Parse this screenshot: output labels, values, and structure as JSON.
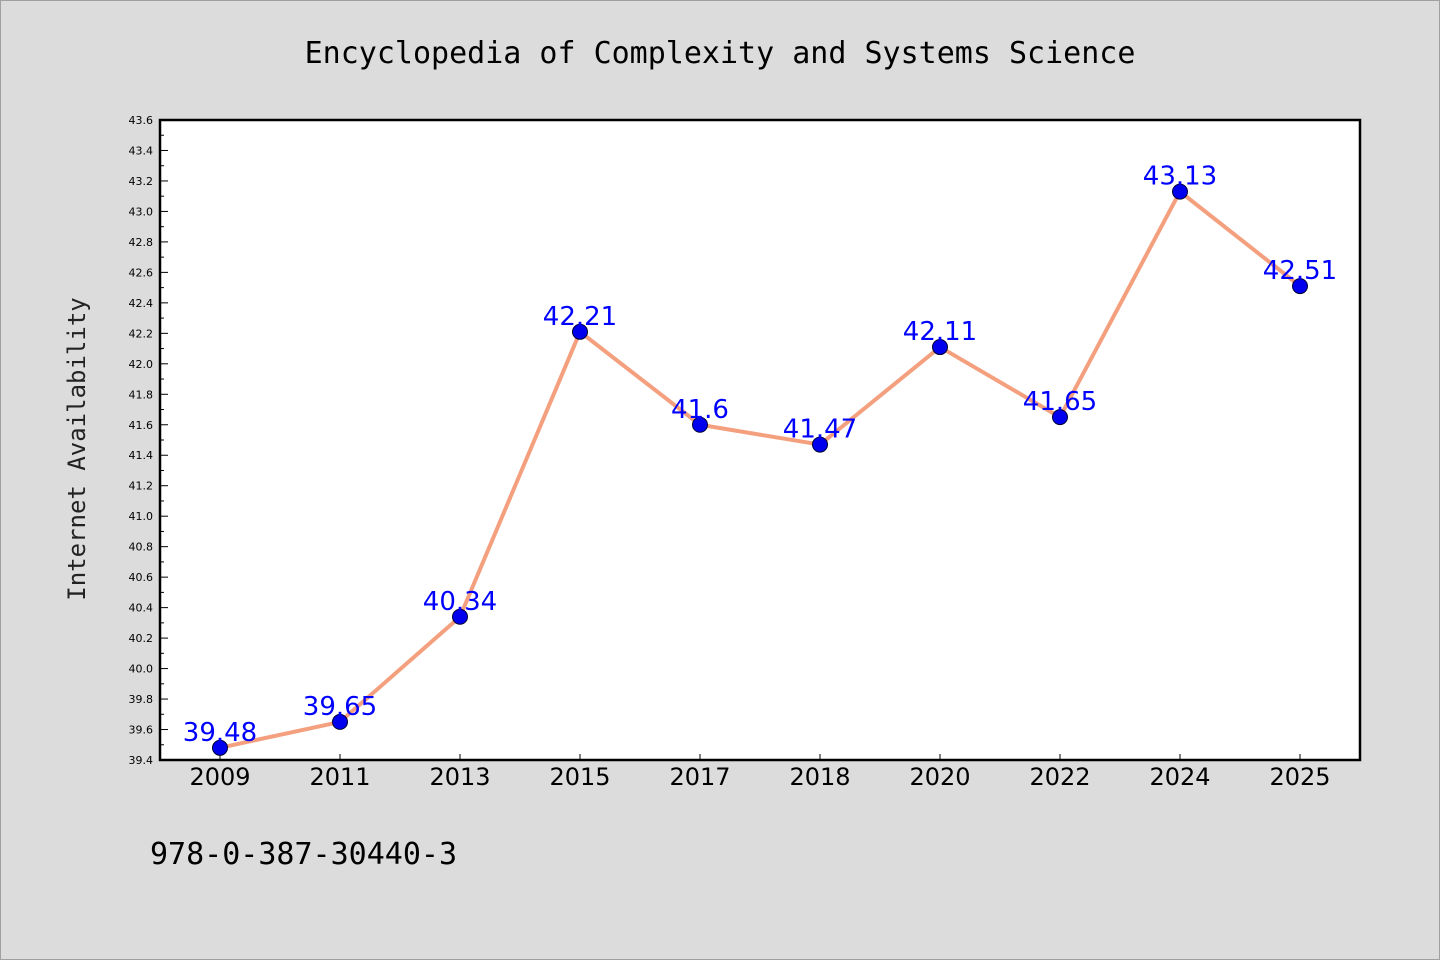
{
  "chart_data": {
    "type": "line",
    "title": "Encyclopedia of Complexity and Systems Science",
    "xlabel": "",
    "ylabel": "Internet Availability",
    "footer": "978-0-387-30440-3",
    "categories": [
      "2009",
      "2011",
      "2013",
      "2015",
      "2017",
      "2018",
      "2020",
      "2022",
      "2024",
      "2025"
    ],
    "series": [
      {
        "values": [
          39.48,
          39.65,
          40.34,
          42.21,
          41.6,
          41.47,
          42.11,
          41.65,
          43.13,
          42.51
        ],
        "labels": [
          "39.48",
          "39.65",
          "40.34",
          "42.21",
          "41.6",
          "41.47",
          "42.11",
          "41.65",
          "43.13",
          "42.51"
        ]
      }
    ],
    "ylim": [
      39.4,
      43.6
    ],
    "yticks": [
      "39.4",
      "39.6",
      "39.8",
      "40.0",
      "40.2",
      "40.4",
      "40.6",
      "40.8",
      "41.0",
      "41.2",
      "41.4",
      "41.6",
      "41.8",
      "42.0",
      "42.2",
      "42.4",
      "42.6",
      "42.8",
      "43.0",
      "43.2",
      "43.4",
      "43.6"
    ],
    "grid": false,
    "legend": "none",
    "colors": {
      "line": "#f4a07e",
      "marker": "#0000ee",
      "label": "#0000ff",
      "background": "#dcdcdc",
      "plot_background": "#ffffff"
    }
  }
}
